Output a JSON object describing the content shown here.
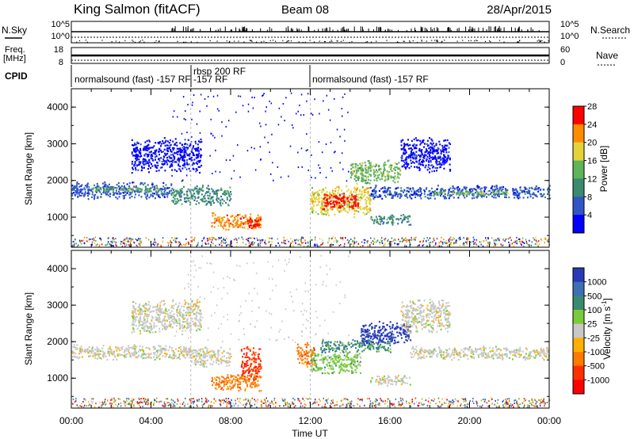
{
  "header": {
    "station": "King Salmon (fitACF)",
    "beam": "Beam 08",
    "date": "28/Apr/2015"
  },
  "top_panels": {
    "nsky_label": "N.Sky",
    "nsky_ticks": [
      "10^5",
      "10^0"
    ],
    "nsearch_label": "N.Search",
    "nsearch_ticks": [
      "10^5",
      "10^0"
    ],
    "freq_label": "Freq.",
    "freq_unit": "[MHz]",
    "freq_ticks": [
      "18",
      "8"
    ],
    "nave_label": "Nave",
    "nave_ticks": [
      "60",
      "0"
    ],
    "cpid_label": "CPID",
    "cpid_segments": [
      {
        "label": "normalsound (fast) -157 RF",
        "start_hour": 0,
        "end_hour": 6
      },
      {
        "label": "rbsp 200 RF",
        "start_hour": 6,
        "end_hour": 12
      },
      {
        "label": "normalsound (fast) -157 RF",
        "start_hour": 12,
        "end_hour": 24
      }
    ],
    "extra_label": "-157 RF"
  },
  "chart_data": [
    {
      "type": "heatmap",
      "name": "power",
      "ylabel": "Slant Range [km]",
      "ylim": [
        180,
        4500
      ],
      "yticks": [
        "1000",
        "2000",
        "3000",
        "4000"
      ],
      "xlim": [
        0,
        24
      ],
      "colorbar_label": "Power [dB]",
      "colorbar_ticks": [
        "4",
        "8",
        "12",
        "16",
        "20",
        "24",
        "28"
      ],
      "colors": [
        "#0000ff",
        "#2f56c4",
        "#3a8a6f",
        "#5fb35a",
        "#e4d23a",
        "#ff8c00",
        "#ff0000"
      ],
      "bands": [
        {
          "t0": 0.0,
          "t1": 5.0,
          "r0": 1500,
          "r1": 2000,
          "level": 1
        },
        {
          "t0": 1.0,
          "t1": 4.5,
          "r0": 1700,
          "r1": 1850,
          "level": 3
        },
        {
          "t0": 3.0,
          "t1": 6.5,
          "r0": 2200,
          "r1": 3200,
          "level": 0
        },
        {
          "t0": 5.0,
          "t1": 8.0,
          "r0": 1300,
          "r1": 1900,
          "level": 2
        },
        {
          "t0": 7.0,
          "t1": 9.5,
          "r0": 650,
          "r1": 1150,
          "level": 5
        },
        {
          "t0": 8.8,
          "t1": 9.4,
          "r0": 700,
          "r1": 1000,
          "level": 6
        },
        {
          "t0": 12.0,
          "t1": 15.0,
          "r0": 1000,
          "r1": 1900,
          "level": 4
        },
        {
          "t0": 12.6,
          "t1": 14.4,
          "r0": 1200,
          "r1": 1700,
          "level": 6
        },
        {
          "t0": 14.0,
          "t1": 16.5,
          "r0": 1900,
          "r1": 2600,
          "level": 3
        },
        {
          "t0": 15.0,
          "t1": 17.0,
          "r0": 800,
          "r1": 1100,
          "level": 2
        },
        {
          "t0": 16.5,
          "t1": 19.0,
          "r0": 2200,
          "r1": 3200,
          "level": 0
        },
        {
          "t0": 15.0,
          "t1": 24.0,
          "r0": 1500,
          "r1": 1900,
          "level": 1
        },
        {
          "t0": 18.0,
          "t1": 22.0,
          "r0": 1600,
          "r1": 1750,
          "level": 3
        }
      ]
    },
    {
      "type": "heatmap",
      "name": "velocity",
      "ylabel": "Slant Range [km]",
      "ylim": [
        180,
        4500
      ],
      "yticks": [
        "1000",
        "2000",
        "3000",
        "4000"
      ],
      "xlim": [
        0,
        24
      ],
      "colorbar_label": "Velocity [m s^-1]",
      "colorbar_ticks": [
        "1000",
        "500",
        "100",
        "25",
        "-25",
        "-100",
        "-500",
        "-1000"
      ],
      "colors": [
        "#2838b8",
        "#3c6fb4",
        "#3a8a6f",
        "#7acb3a",
        "#c8c8c8",
        "#ffb000",
        "#ff7a00",
        "#ff3000",
        "#ff0000"
      ],
      "bands": [
        {
          "t0": 0.0,
          "t1": 6.0,
          "r0": 1500,
          "r1": 1950,
          "level": 4
        },
        {
          "t0": 3.0,
          "t1": 6.5,
          "r0": 2200,
          "r1": 3200,
          "level": 4
        },
        {
          "t0": 6.0,
          "t1": 8.0,
          "r0": 1300,
          "r1": 1900,
          "level": 4
        },
        {
          "t0": 7.0,
          "t1": 9.5,
          "r0": 650,
          "r1": 1150,
          "level": 6
        },
        {
          "t0": 8.5,
          "t1": 9.5,
          "r0": 900,
          "r1": 1900,
          "level": 7
        },
        {
          "t0": 11.3,
          "t1": 12.2,
          "r0": 1300,
          "r1": 2000,
          "level": 6
        },
        {
          "t0": 12.0,
          "t1": 14.5,
          "r0": 1100,
          "r1": 1800,
          "level": 3
        },
        {
          "t0": 12.5,
          "t1": 16.0,
          "r0": 1700,
          "r1": 2100,
          "level": 2
        },
        {
          "t0": 14.5,
          "t1": 17.0,
          "r0": 1900,
          "r1": 2600,
          "level": 0
        },
        {
          "t0": 15.0,
          "t1": 17.0,
          "r0": 800,
          "r1": 1100,
          "level": 4
        },
        {
          "t0": 16.5,
          "t1": 19.0,
          "r0": 2200,
          "r1": 3200,
          "level": 4
        },
        {
          "t0": 17.0,
          "t1": 24.0,
          "r0": 1500,
          "r1": 1900,
          "level": 4
        }
      ]
    }
  ],
  "xaxis": {
    "label": "Time UT",
    "ticks": [
      "00:00",
      "04:00",
      "08:00",
      "12:00",
      "16:00",
      "20:00",
      "00:00"
    ]
  }
}
